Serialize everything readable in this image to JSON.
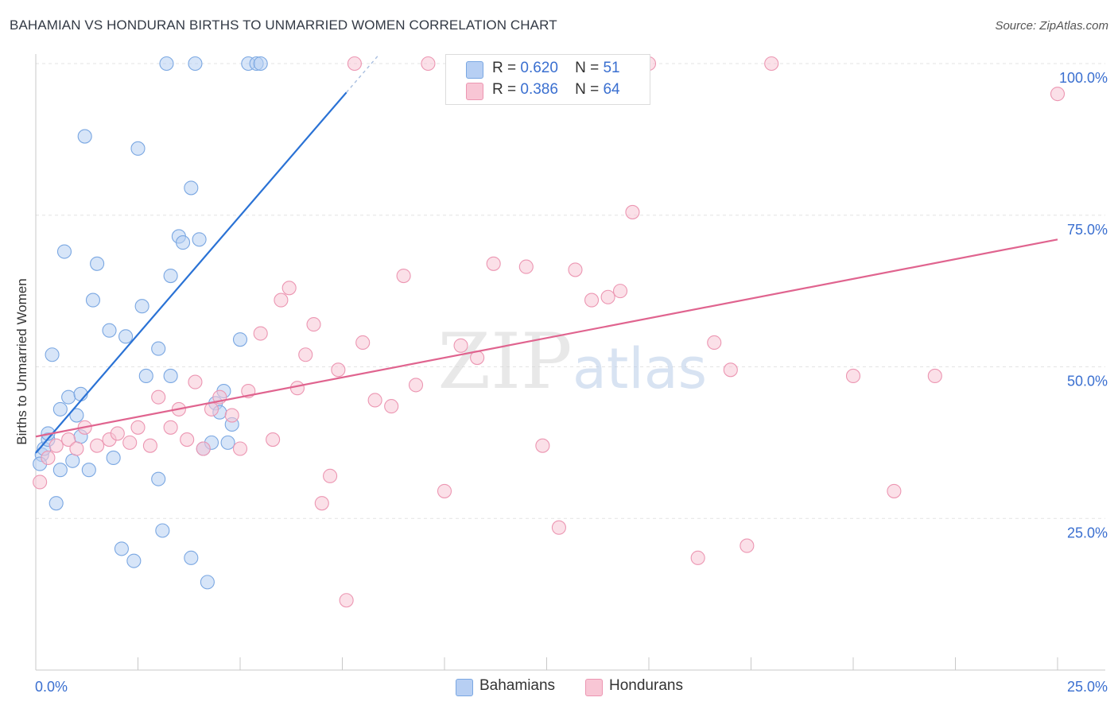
{
  "title": "BAHAMIAN VS HONDURAN BIRTHS TO UNMARRIED WOMEN CORRELATION CHART",
  "source": "Source: ZipAtlas.com",
  "watermark": {
    "zip": "ZIP",
    "atlas": "atlas"
  },
  "legend_top": [
    {
      "r_label": "R =",
      "r_value": "0.620",
      "n_label": "N =",
      "n_value": "51"
    },
    {
      "r_label": "R =",
      "r_value": "0.386",
      "n_label": "N =",
      "n_value": "64"
    }
  ],
  "colors": {
    "bahamians_fill": "#b7cff3",
    "bahamians_stroke": "#7aa7e2",
    "bahamians_line": "#2a72d5",
    "hondurans_fill": "#f8c6d5",
    "hondurans_stroke": "#ec96b2",
    "hondurans_line": "#e0648f",
    "tick_label": "#3a6fd0",
    "grid": "#e3e3e3"
  },
  "chart_data": {
    "type": "scatter",
    "ylabel": "Births to Unmarried Women",
    "xlim": [
      0,
      25
    ],
    "ylim": [
      0,
      100
    ],
    "x_tick_labels": [
      {
        "value": 0,
        "label": "0.0%"
      },
      {
        "value": 25,
        "label": "25.0%"
      }
    ],
    "y_tick_labels": [
      {
        "value": 25,
        "label": "25.0%"
      },
      {
        "value": 50,
        "label": "50.0%"
      },
      {
        "value": 75,
        "label": "75.0%"
      },
      {
        "value": 100,
        "label": "100.0%"
      }
    ],
    "y_grid_values": [
      25,
      50,
      75,
      100
    ],
    "x_minor_ticks": [
      2.5,
      5,
      7.5,
      10,
      12.5,
      15,
      17.5,
      20,
      22.5,
      25
    ],
    "grid": true,
    "legend_position": "bottom",
    "series": [
      {
        "name": "Bahamians",
        "x": [
          0.15,
          0.1,
          0.2,
          0.3,
          0.3,
          0.4,
          0.5,
          0.6,
          0.6,
          0.7,
          0.8,
          0.9,
          1.0,
          1.1,
          1.1,
          1.2,
          1.3,
          1.4,
          1.5,
          1.8,
          1.9,
          2.1,
          2.2,
          2.4,
          2.5,
          2.6,
          2.7,
          3.0,
          3.0,
          3.1,
          3.2,
          3.3,
          3.3,
          3.5,
          3.6,
          3.8,
          3.8,
          3.9,
          4.0,
          4.1,
          4.2,
          4.3,
          4.4,
          4.5,
          4.6,
          4.7,
          4.8,
          5.0,
          5.2,
          5.4,
          5.5
        ],
        "y": [
          35.5,
          34.0,
          36.5,
          38.0,
          39.0,
          52.0,
          27.5,
          33.0,
          43.0,
          69.0,
          45.0,
          34.5,
          42.0,
          38.5,
          45.5,
          88.0,
          33.0,
          61.0,
          67.0,
          56.0,
          35.0,
          20.0,
          55.0,
          18.0,
          86.0,
          60.0,
          48.5,
          53.0,
          31.5,
          23.0,
          100,
          65.0,
          48.5,
          71.5,
          70.5,
          79.5,
          18.5,
          100,
          71.0,
          36.5,
          14.5,
          37.5,
          44.0,
          42.5,
          46.0,
          37.5,
          40.5,
          54.5,
          100,
          100,
          100
        ]
      },
      {
        "name": "Hondurans",
        "x": [
          0.1,
          0.3,
          0.5,
          0.8,
          1.0,
          1.2,
          1.5,
          1.8,
          2.0,
          2.3,
          2.5,
          2.8,
          3.0,
          3.3,
          3.5,
          3.7,
          3.9,
          4.1,
          4.3,
          4.5,
          4.8,
          5.0,
          5.2,
          5.5,
          5.8,
          6.0,
          6.2,
          6.4,
          6.6,
          6.8,
          7.0,
          7.2,
          7.4,
          7.6,
          7.8,
          8.0,
          8.3,
          8.7,
          9.0,
          9.3,
          9.6,
          10.0,
          10.4,
          10.8,
          11.2,
          11.6,
          12.0,
          12.4,
          12.8,
          13.2,
          13.6,
          14.0,
          14.3,
          14.6,
          15.0,
          16.2,
          16.6,
          17.0,
          17.4,
          18.0,
          20.0,
          21.0,
          22.0,
          25.0
        ],
        "y": [
          31.0,
          35.0,
          37.0,
          38.0,
          36.5,
          40.0,
          37.0,
          38.0,
          39.0,
          37.5,
          40.0,
          37.0,
          45.0,
          40.0,
          43.0,
          38.0,
          47.5,
          36.5,
          43.0,
          45.0,
          42.0,
          36.5,
          46.0,
          55.5,
          38.0,
          61.0,
          63.0,
          46.5,
          52.0,
          57.0,
          27.5,
          32.0,
          49.5,
          11.5,
          100,
          54.0,
          44.5,
          43.5,
          65.0,
          47.0,
          100,
          29.5,
          53.5,
          51.5,
          67.0,
          100,
          66.5,
          37.0,
          23.5,
          66.0,
          61.0,
          61.5,
          62.5,
          75.5,
          100,
          18.5,
          54.0,
          49.5,
          20.5,
          100,
          48.5,
          29.5,
          48.5,
          95.0
        ]
      }
    ],
    "trend_lines": [
      {
        "series": "Bahamians",
        "x": [
          0,
          8.4
        ],
        "y": [
          35.8,
          101.5
        ]
      },
      {
        "series": "Hondurans",
        "x": [
          0,
          25
        ],
        "y": [
          38.5,
          71.0
        ]
      }
    ]
  },
  "legend_bottom": [
    {
      "label": "Bahamians"
    },
    {
      "label": "Hondurans"
    }
  ]
}
